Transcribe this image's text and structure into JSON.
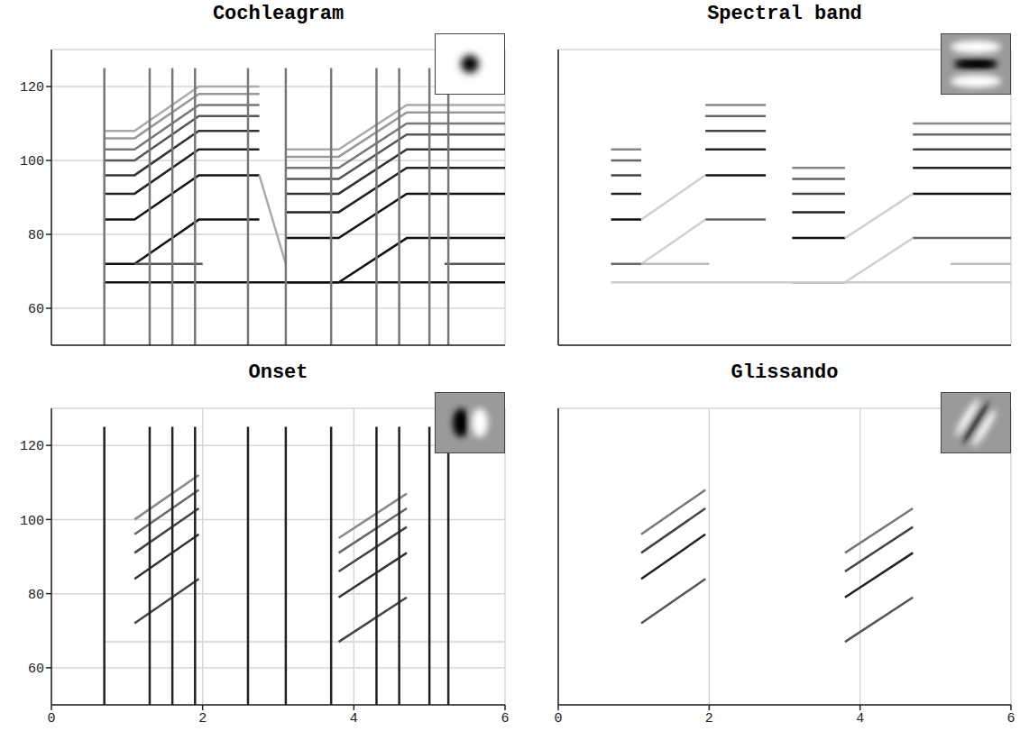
{
  "chart_data": [
    {
      "type": "line",
      "title": "Cochleagram",
      "xlim": [
        0,
        6
      ],
      "xticks": [
        0,
        2,
        4,
        6
      ],
      "ylim": [
        50,
        130
      ],
      "yticks": [
        60,
        80,
        100,
        120
      ],
      "grid": true,
      "tick_labels": "y",
      "series": [
        {
          "color": "#111111",
          "x": [
            0.7,
            1.1,
            1.95,
            2.75,
            2.9,
            3.1,
            3.8,
            4.7,
            6.0
          ],
          "values": [
            72,
            72,
            84,
            84,
            null,
            67,
            67,
            79,
            79
          ]
        },
        {
          "color": "#111111",
          "x": [
            0.7,
            1.1,
            1.95,
            2.75,
            2.9,
            3.1,
            3.8,
            4.7,
            6.0
          ],
          "values": [
            84,
            84,
            96,
            96,
            null,
            79,
            79,
            91,
            91
          ]
        },
        {
          "color": "#222222",
          "x": [
            0.7,
            1.1,
            1.95,
            2.75,
            2.9,
            3.1,
            3.8,
            4.7,
            6.0
          ],
          "values": [
            91,
            91,
            103,
            103,
            null,
            86,
            86,
            98,
            98
          ]
        },
        {
          "color": "#333333",
          "x": [
            0.7,
            1.1,
            1.95,
            2.75,
            2.9,
            3.1,
            3.8,
            4.7,
            6.0
          ],
          "values": [
            96,
            96,
            108,
            108,
            null,
            91,
            91,
            103,
            103
          ]
        },
        {
          "color": "#555555",
          "x": [
            0.7,
            1.1,
            1.95,
            2.75,
            2.9,
            3.1,
            3.8,
            4.7,
            6.0
          ],
          "values": [
            100,
            100,
            112,
            112,
            null,
            95,
            95,
            107,
            107
          ]
        },
        {
          "color": "#777777",
          "x": [
            0.7,
            1.1,
            1.95,
            2.75,
            2.9,
            3.1,
            3.8,
            4.7,
            6.0
          ],
          "values": [
            103,
            103,
            115,
            115,
            null,
            98,
            98,
            110,
            110
          ]
        },
        {
          "color": "#999999",
          "x": [
            0.7,
            1.1,
            1.95,
            2.75,
            2.9,
            3.1,
            3.8,
            4.7,
            6.0
          ],
          "values": [
            106,
            106,
            118,
            118,
            null,
            101,
            101,
            113,
            113
          ]
        },
        {
          "color": "#aaaaaa",
          "x": [
            0.7,
            1.1,
            1.95,
            2.75,
            2.9,
            3.1,
            3.8,
            4.7,
            6.0
          ],
          "values": [
            108,
            108,
            120,
            120,
            null,
            103,
            103,
            115,
            115
          ]
        },
        {
          "color": "#111111",
          "x": [
            0.7,
            6.0
          ],
          "values": [
            67,
            67
          ]
        },
        {
          "color": "#555555",
          "x": [
            1.1,
            2.0,
            2.1,
            5.2,
            6.0
          ],
          "values": [
            72,
            72,
            null,
            72,
            72
          ]
        },
        {
          "color": "#aaaaaa",
          "x": [
            2.75,
            3.1
          ],
          "values": [
            96,
            72
          ]
        },
        {
          "color": "#777777",
          "x": [
            0.7,
            0.7,
            1.0,
            1.3,
            1.3,
            1.45,
            1.6,
            1.6,
            1.75,
            1.9,
            1.9,
            2.2,
            2.6,
            2.6,
            2.85,
            3.1,
            3.1,
            3.4,
            3.7,
            3.7,
            4.0,
            4.3,
            4.3,
            4.45,
            4.6,
            4.6,
            4.8,
            5.0,
            5.0,
            5.1,
            5.25,
            5.25
          ],
          "values": [
            50,
            125,
            null,
            50,
            125,
            null,
            50,
            125,
            null,
            50,
            125,
            null,
            50,
            125,
            null,
            50,
            125,
            null,
            50,
            125,
            null,
            50,
            125,
            null,
            50,
            125,
            null,
            50,
            125,
            null,
            50,
            125
          ]
        }
      ]
    },
    {
      "type": "line",
      "title": "Spectral band",
      "xlim": [
        0,
        6
      ],
      "xticks": [
        0,
        2,
        4,
        6
      ],
      "ylim": [
        50,
        130
      ],
      "yticks": [
        60,
        80,
        100,
        120
      ],
      "grid": true,
      "tick_labels": false,
      "series": [
        {
          "color": "#666666",
          "x": [
            0.7,
            1.1,
            1.5,
            1.95,
            2.75,
            2.9,
            3.1,
            3.8,
            4.2,
            4.7,
            6.0
          ],
          "values": [
            72,
            72,
            null,
            84,
            84,
            null,
            67,
            67,
            null,
            79,
            79
          ]
        },
        {
          "color": "#111111",
          "x": [
            0.7,
            1.1,
            1.5,
            1.95,
            2.75,
            2.9,
            3.1,
            3.8,
            4.2,
            4.7,
            6.0
          ],
          "values": [
            84,
            84,
            null,
            96,
            96,
            null,
            79,
            79,
            null,
            91,
            91
          ]
        },
        {
          "color": "#222222",
          "x": [
            0.7,
            1.1,
            1.5,
            1.95,
            2.75,
            2.9,
            3.1,
            3.8,
            4.2,
            4.7,
            6.0
          ],
          "values": [
            91,
            91,
            null,
            103,
            103,
            null,
            86,
            86,
            null,
            98,
            98
          ]
        },
        {
          "color": "#444444",
          "x": [
            0.7,
            1.1,
            1.5,
            1.95,
            2.75,
            2.9,
            3.1,
            3.8,
            4.2,
            4.7,
            6.0
          ],
          "values": [
            96,
            96,
            null,
            108,
            108,
            null,
            91,
            91,
            null,
            103,
            103
          ]
        },
        {
          "color": "#666666",
          "x": [
            0.7,
            1.1,
            1.5,
            1.95,
            2.75,
            2.9,
            3.1,
            3.8,
            4.2,
            4.7,
            6.0
          ],
          "values": [
            100,
            100,
            null,
            112,
            112,
            null,
            95,
            95,
            null,
            107,
            107
          ]
        },
        {
          "color": "#888888",
          "x": [
            0.7,
            1.1,
            1.5,
            1.95,
            2.75,
            2.9,
            3.1,
            3.8,
            4.2,
            4.7,
            6.0
          ],
          "values": [
            103,
            103,
            null,
            115,
            115,
            null,
            98,
            98,
            null,
            110,
            110
          ]
        },
        {
          "color": "#d0d0d0",
          "x": [
            1.1,
            1.95,
            2.3,
            3.8,
            4.7
          ],
          "values": [
            72,
            84,
            null,
            67,
            79
          ]
        },
        {
          "color": "#d0d0d0",
          "x": [
            1.1,
            1.95,
            2.3,
            3.8,
            4.7
          ],
          "values": [
            84,
            96,
            null,
            79,
            91
          ]
        },
        {
          "color": "#cccccc",
          "x": [
            0.7,
            6.0
          ],
          "values": [
            67,
            67
          ]
        },
        {
          "color": "#bbbbbb",
          "x": [
            1.1,
            2.0,
            2.1,
            5.2,
            6.0
          ],
          "values": [
            72,
            72,
            null,
            72,
            72
          ]
        }
      ]
    },
    {
      "type": "line",
      "title": "Onset",
      "xlim": [
        0,
        6
      ],
      "xticks": [
        0,
        2,
        4,
        6
      ],
      "ylim": [
        50,
        130
      ],
      "yticks": [
        60,
        80,
        100,
        120
      ],
      "grid": true,
      "tick_labels": true,
      "series": [
        {
          "color": "#dddddd",
          "x": [
            0.7,
            6.0
          ],
          "values": [
            67,
            67
          ]
        },
        {
          "color": "#444444",
          "x": [
            1.1,
            1.95,
            2.3,
            3.8,
            4.7
          ],
          "values": [
            72,
            84,
            null,
            67,
            79
          ]
        },
        {
          "color": "#333333",
          "x": [
            1.1,
            1.95,
            2.3,
            3.8,
            4.7
          ],
          "values": [
            84,
            96,
            null,
            79,
            91
          ]
        },
        {
          "color": "#444444",
          "x": [
            1.1,
            1.95,
            2.3,
            3.8,
            4.7
          ],
          "values": [
            91,
            103,
            null,
            86,
            98
          ]
        },
        {
          "color": "#666666",
          "x": [
            1.1,
            1.95,
            2.3,
            3.8,
            4.7
          ],
          "values": [
            96,
            108,
            null,
            91,
            103
          ]
        },
        {
          "color": "#888888",
          "x": [
            1.1,
            1.95,
            2.3,
            3.8,
            4.7
          ],
          "values": [
            100,
            112,
            null,
            95,
            107
          ]
        },
        {
          "color": "#222222",
          "x": [
            0.7,
            0.7,
            1.0,
            1.3,
            1.3,
            1.45,
            1.6,
            1.6,
            1.75,
            1.9,
            1.9,
            2.2,
            2.6,
            2.6,
            2.85,
            3.1,
            3.1,
            3.4,
            3.7,
            3.7,
            4.0,
            4.3,
            4.3,
            4.45,
            4.6,
            4.6,
            4.8,
            5.0,
            5.0,
            5.1,
            5.25,
            5.25
          ],
          "values": [
            50,
            125,
            null,
            50,
            125,
            null,
            50,
            125,
            null,
            50,
            125,
            null,
            50,
            125,
            null,
            50,
            125,
            null,
            50,
            125,
            null,
            50,
            125,
            null,
            50,
            125,
            null,
            50,
            125,
            null,
            50,
            125
          ]
        }
      ]
    },
    {
      "type": "line",
      "title": "Glissando",
      "xlim": [
        0,
        6
      ],
      "xticks": [
        0,
        2,
        4,
        6
      ],
      "ylim": [
        50,
        130
      ],
      "yticks": [
        60,
        80,
        100,
        120
      ],
      "grid": true,
      "tick_labels": "x",
      "series": [
        {
          "color": "#555555",
          "x": [
            1.1,
            1.95,
            2.3,
            3.8,
            4.7
          ],
          "values": [
            72,
            84,
            null,
            67,
            79
          ]
        },
        {
          "color": "#222222",
          "x": [
            1.1,
            1.95,
            2.3,
            3.8,
            4.7
          ],
          "values": [
            84,
            96,
            null,
            79,
            91
          ]
        },
        {
          "color": "#444444",
          "x": [
            1.1,
            1.95,
            2.3,
            3.8,
            4.7
          ],
          "values": [
            91,
            103,
            null,
            86,
            98
          ]
        },
        {
          "color": "#777777",
          "x": [
            1.1,
            1.95,
            2.3,
            3.8,
            4.7
          ],
          "values": [
            96,
            108,
            null,
            91,
            103
          ]
        }
      ]
    }
  ]
}
